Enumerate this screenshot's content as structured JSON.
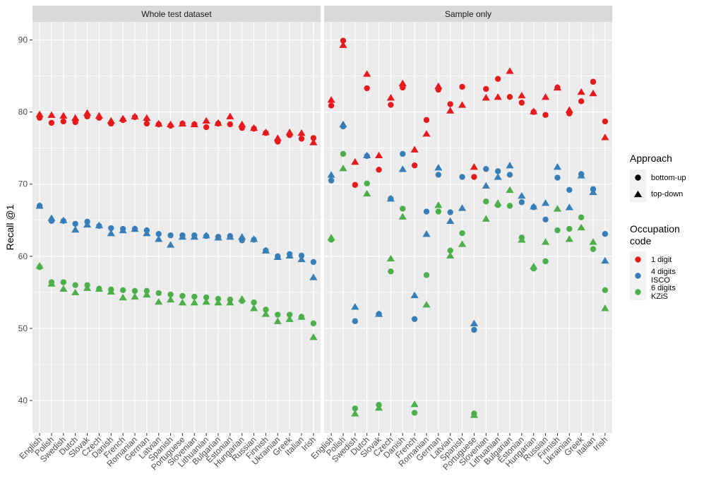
{
  "chart_data": {
    "type": "scatter",
    "ylabel": "Recall @1",
    "ylim": [
      35.5,
      92.5
    ],
    "yticks": [
      40,
      50,
      60,
      70,
      80,
      90
    ],
    "panels": [
      {
        "title": "Whole test dataset",
        "categories": [
          "English",
          "Polish",
          "Swedish",
          "Dutch",
          "Slovak",
          "Czech",
          "Danish",
          "French",
          "Romanian",
          "German",
          "Latvian",
          "Spanish",
          "Portuguese",
          "Slovenian",
          "Lithuanian",
          "Bulgarian",
          "Estonian",
          "Hungarian",
          "Russian",
          "Finnish",
          "Ukrainian",
          "Greek",
          "Italian",
          "Irish"
        ],
        "series": [
          {
            "code": "1 digit",
            "approach": "bottom-up",
            "values": [
              79.2,
              78.5,
              78.7,
              78.6,
              79.4,
              79.2,
              78.4,
              78.9,
              79.3,
              78.4,
              78.3,
              78.1,
              78.4,
              78.3,
              77.9,
              78.4,
              78.3,
              77.8,
              77.7,
              77.1,
              75.9,
              76.8,
              76.3,
              76.4
            ]
          },
          {
            "code": "1 digit",
            "approach": "top-down",
            "values": [
              79.7,
              79.6,
              79.5,
              79.2,
              79.9,
              79.5,
              78.8,
              79.1,
              79.4,
              79.2,
              78.4,
              78.3,
              78.4,
              78.3,
              78.8,
              78.5,
              79.4,
              78.3,
              77.8,
              77.2,
              76.4,
              77.2,
              77.1,
              75.8
            ]
          },
          {
            "code": "4 digits ISCO",
            "approach": "bottom-up",
            "values": [
              67.0,
              64.9,
              64.9,
              64.5,
              64.8,
              64.2,
              63.9,
              63.8,
              63.8,
              63.6,
              63.1,
              62.9,
              62.9,
              62.9,
              62.8,
              62.7,
              62.8,
              62.2,
              62.3,
              60.8,
              60.0,
              60.3,
              60.1,
              59.2
            ]
          },
          {
            "code": "4 digits ISCO",
            "approach": "top-down",
            "values": [
              67.0,
              65.3,
              65.0,
              63.7,
              64.4,
              64.3,
              63.2,
              63.6,
              63.8,
              63.2,
              62.4,
              61.6,
              62.7,
              62.7,
              62.9,
              62.6,
              62.7,
              62.7,
              62.4,
              60.8,
              59.9,
              60.1,
              59.6,
              57.1
            ]
          },
          {
            "code": "6 digits KZiS",
            "approach": "bottom-up",
            "values": [
              58.5,
              56.4,
              56.4,
              56.0,
              56.0,
              55.5,
              55.4,
              55.3,
              55.2,
              55.2,
              54.9,
              54.7,
              54.5,
              54.4,
              54.3,
              54.1,
              54.0,
              53.8,
              53.6,
              52.6,
              51.9,
              51.9,
              51.6,
              50.7
            ]
          },
          {
            "code": "6 digits KZiS",
            "approach": "top-down",
            "values": [
              58.7,
              56.2,
              55.5,
              55.0,
              55.6,
              55.5,
              55.1,
              54.3,
              54.4,
              54.7,
              53.7,
              54.0,
              53.6,
              53.6,
              53.7,
              53.6,
              53.6,
              54.1,
              52.8,
              52.0,
              51.0,
              51.3,
              51.6,
              48.8
            ]
          }
        ]
      },
      {
        "title": "Sample only",
        "categories": [
          "English",
          "Polish",
          "Swedish",
          "Dutch",
          "Slovak",
          "Czech",
          "Danish",
          "French",
          "Romanian",
          "German",
          "Latvian",
          "Spanish",
          "Portuguese",
          "Slovenian",
          "Lithuanian",
          "Bulgarian",
          "Estonian",
          "Hungarian",
          "Russian",
          "Finnish",
          "Ukrainian",
          "Greek",
          "Italian",
          "Irish"
        ],
        "series": [
          {
            "code": "1 digit",
            "approach": "bottom-up",
            "values": [
              80.9,
              89.9,
              69.9,
              83.3,
              72.0,
              81.0,
              83.4,
              72.6,
              78.9,
              83.1,
              81.1,
              83.5,
              71.0,
              83.2,
              84.6,
              82.1,
              81.3,
              80.0,
              79.6,
              83.4,
              79.8,
              81.5,
              84.2,
              78.7
            ]
          },
          {
            "code": "1 digit",
            "approach": "top-down",
            "values": [
              81.7,
              89.3,
              73.1,
              85.3,
              74.0,
              82.0,
              84.0,
              74.8,
              77.0,
              83.6,
              80.2,
              81.0,
              72.4,
              82.0,
              82.1,
              85.7,
              82.3,
              80.1,
              82.1,
              83.4,
              80.3,
              82.8,
              82.6,
              76.5
            ]
          },
          {
            "code": "4 digits ISCO",
            "approach": "bottom-up",
            "values": [
              70.5,
              78.0,
              51.0,
              73.9,
              52.0,
              68.0,
              74.2,
              51.3,
              66.2,
              71.3,
              66.1,
              71.0,
              49.8,
              72.1,
              71.8,
              71.3,
              67.5,
              66.8,
              65.1,
              70.9,
              69.2,
              71.4,
              69.3,
              63.1
            ]
          },
          {
            "code": "4 digits ISCO",
            "approach": "top-down",
            "values": [
              71.3,
              78.3,
              53.0,
              74.0,
              52.0,
              68.0,
              72.1,
              54.6,
              63.1,
              72.3,
              64.9,
              66.7,
              50.7,
              69.8,
              71.0,
              72.6,
              68.4,
              66.9,
              67.4,
              72.4,
              66.8,
              71.2,
              68.9,
              59.4
            ]
          },
          {
            "code": "6 digits KZiS",
            "approach": "bottom-up",
            "values": [
              62.3,
              74.2,
              38.9,
              70.1,
              39.4,
              57.9,
              66.6,
              38.3,
              57.4,
              66.2,
              60.8,
              63.2,
              38.2,
              67.6,
              67.1,
              67.0,
              62.6,
              58.3,
              59.3,
              63.6,
              63.8,
              65.4,
              61.0,
              55.3
            ]
          },
          {
            "code": "6 digits KZiS",
            "approach": "top-down",
            "values": [
              62.6,
              72.2,
              38.2,
              68.7,
              39.0,
              59.7,
              65.5,
              39.5,
              53.3,
              67.1,
              60.1,
              61.7,
              38.0,
              65.2,
              67.4,
              69.2,
              62.3,
              58.6,
              62.0,
              66.6,
              62.4,
              64.0,
              62.0,
              52.8
            ]
          }
        ]
      }
    ],
    "legend": {
      "position": "right",
      "approach": {
        "title": "Approach",
        "items": [
          "bottom-up",
          "top-down"
        ]
      },
      "code": {
        "title": [
          "Occupation",
          "code"
        ],
        "items": [
          {
            "key": "1 digit",
            "lines": [
              "1 digit"
            ],
            "color": "#e41a1c"
          },
          {
            "key": "4 digits ISCO",
            "lines": [
              "4 digits",
              "ISCO"
            ],
            "color": "#377eb8"
          },
          {
            "key": "6 digits KZiS",
            "lines": [
              "6 digits",
              "KZiS"
            ],
            "color": "#4daf4a"
          }
        ]
      }
    }
  }
}
